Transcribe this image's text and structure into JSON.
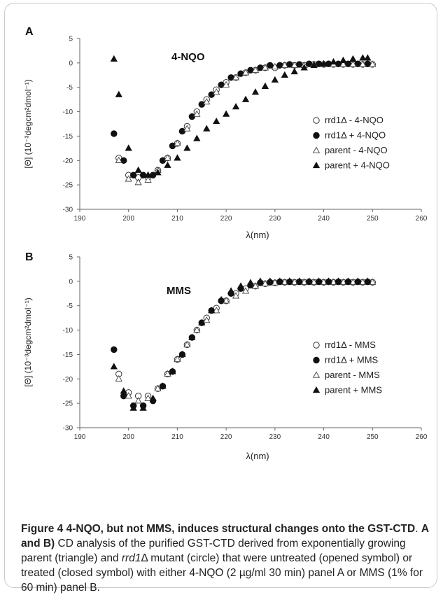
{
  "chart_data": [
    {
      "type": "scatter",
      "panel_label": "A",
      "title": "4-NQO",
      "xlabel": "λ(nm)",
      "ylabel": "[Θ] (10⁻³degcm²dmol⁻¹)",
      "xlim": [
        190,
        260
      ],
      "ylim": [
        -30,
        5
      ],
      "x_ticks": [
        "190",
        "200",
        "210",
        "220",
        "230",
        "240",
        "250",
        "260"
      ],
      "y_ticks": [
        "5",
        "0",
        "-5",
        "-10",
        "-15",
        "-20",
        "-25",
        "-30"
      ],
      "grid": false,
      "legend_position": "right",
      "series": [
        {
          "name": "rrd1Δ - 4-NQO",
          "marker": "circle-open",
          "x": [
            198,
            200,
            202,
            204,
            206,
            208,
            210,
            212,
            214,
            216,
            218,
            220,
            222,
            224,
            226,
            228,
            230,
            232,
            234,
            236,
            238,
            240,
            242,
            244,
            246,
            248,
            250
          ],
          "y": [
            -19.5,
            -23,
            -23.5,
            -23.5,
            -22,
            -19.5,
            -16.5,
            -13,
            -10,
            -7.5,
            -5.5,
            -4,
            -3,
            -2,
            -1.5,
            -1,
            -1,
            -0.5,
            -0.5,
            -0.5,
            -0.3,
            -0.3,
            -0.3,
            -0.3,
            -0.3,
            -0.3,
            -0.3
          ]
        },
        {
          "name": "rrd1Δ + 4-NQO",
          "marker": "circle-filled",
          "x": [
            197,
            199,
            201,
            203,
            205,
            207,
            209,
            211,
            213,
            215,
            217,
            219,
            221,
            223,
            225,
            227,
            229,
            231,
            233,
            235,
            237,
            239,
            241,
            243,
            245,
            247,
            249
          ],
          "y": [
            -14.5,
            -20,
            -23,
            -23,
            -23,
            -20,
            -17,
            -14,
            -11,
            -8.5,
            -6.5,
            -4.5,
            -3,
            -2.2,
            -1.5,
            -1,
            -0.5,
            -0.5,
            -0.3,
            -0.3,
            -0.2,
            -0.2,
            -0.2,
            -0.2,
            -0.2,
            -0.2,
            -0.2
          ]
        },
        {
          "name": "parent - 4-NQO",
          "marker": "triangle-open",
          "x": [
            198,
            200,
            202,
            204,
            206,
            208,
            210,
            212,
            214,
            216,
            218,
            220,
            222,
            224,
            226,
            228,
            230,
            232,
            234,
            236,
            238,
            240,
            242,
            244,
            246,
            248,
            250
          ],
          "y": [
            -20,
            -23.8,
            -24.5,
            -24,
            -22,
            -19.5,
            -16.5,
            -13.5,
            -10.5,
            -8,
            -6,
            -4.5,
            -3,
            -2,
            -1.5,
            -1,
            -0.8,
            -0.5,
            -0.5,
            -0.5,
            -0.3,
            -0.3,
            -0.3,
            -0.3,
            -0.3,
            -0.3,
            -0.3
          ]
        },
        {
          "name": "parent + 4-NQO",
          "marker": "triangle-filled",
          "x": [
            197,
            198,
            200,
            202,
            204,
            206,
            208,
            210,
            212,
            214,
            216,
            218,
            220,
            222,
            224,
            226,
            228,
            230,
            232,
            234,
            236,
            238,
            240,
            242,
            244,
            246,
            248,
            249
          ],
          "y": [
            0.8,
            -6.5,
            -17.5,
            -22,
            -23,
            -22.5,
            -21,
            -19.5,
            -17.5,
            -15.5,
            -13.5,
            -12,
            -10.5,
            -9,
            -7.5,
            -6,
            -4.8,
            -3.5,
            -2.5,
            -1.8,
            -1,
            -0.5,
            -0.2,
            0.2,
            0.5,
            0.8,
            1,
            1
          ]
        }
      ]
    },
    {
      "type": "scatter",
      "panel_label": "B",
      "title": "MMS",
      "xlabel": "λ(nm)",
      "ylabel": "[Θ] (10⁻³degcm²dmol⁻¹)",
      "xlim": [
        190,
        260
      ],
      "ylim": [
        -30,
        5
      ],
      "x_ticks": [
        "190",
        "200",
        "210",
        "220",
        "230",
        "240",
        "250",
        "260"
      ],
      "y_ticks": [
        "5",
        "0",
        "-5",
        "-10",
        "-15",
        "-20",
        "-25",
        "-30"
      ],
      "grid": false,
      "legend_position": "right",
      "series": [
        {
          "name": "rrd1Δ - MMS",
          "marker": "circle-open",
          "x": [
            198,
            200,
            202,
            204,
            206,
            208,
            210,
            212,
            214,
            216,
            218,
            220,
            222,
            224,
            226,
            228,
            230,
            232,
            234,
            236,
            238,
            240,
            242,
            244,
            246,
            248,
            250
          ],
          "y": [
            -19,
            -22.8,
            -23.5,
            -23.5,
            -22,
            -19,
            -16,
            -13,
            -10,
            -7.5,
            -5.5,
            -4,
            -2.5,
            -1.5,
            -1,
            -0.5,
            -0.3,
            -0.2,
            -0.2,
            -0.2,
            -0.2,
            -0.2,
            -0.2,
            -0.2,
            -0.2,
            -0.2,
            -0.2
          ]
        },
        {
          "name": "rrd1Δ + MMS",
          "marker": "circle-filled",
          "x": [
            197,
            199,
            201,
            203,
            205,
            207,
            209,
            211,
            213,
            215,
            217,
            219,
            221,
            223,
            225,
            227,
            229,
            231,
            233,
            235,
            237,
            239,
            241,
            243,
            245,
            247,
            249
          ],
          "y": [
            -14,
            -23.5,
            -25.5,
            -25.5,
            -24.5,
            -21.5,
            -18.5,
            -15,
            -11.5,
            -8.5,
            -6,
            -4,
            -2.5,
            -1.5,
            -0.8,
            -0.3,
            -0.2,
            -0.1,
            -0.1,
            -0.1,
            -0.1,
            -0.1,
            -0.1,
            -0.1,
            -0.1,
            -0.1,
            -0.1
          ]
        },
        {
          "name": "parent - MMS",
          "marker": "triangle-open",
          "x": [
            198,
            200,
            202,
            204,
            206,
            208,
            210,
            212,
            214,
            216,
            218,
            220,
            222,
            224,
            226,
            228,
            230,
            232,
            234,
            236,
            238,
            240,
            242,
            244,
            246,
            248,
            250
          ],
          "y": [
            -20,
            -23.5,
            -24.5,
            -24,
            -22,
            -19,
            -16,
            -13,
            -10,
            -8,
            -6,
            -4,
            -3,
            -2,
            -1,
            -0.5,
            -0.3,
            -0.2,
            -0.2,
            -0.2,
            -0.2,
            -0.2,
            -0.2,
            -0.2,
            -0.2,
            -0.2,
            -0.2
          ]
        },
        {
          "name": "parent + MMS",
          "marker": "triangle-filled",
          "x": [
            197,
            199,
            201,
            203,
            205,
            207,
            209,
            211,
            213,
            215,
            217,
            219,
            221,
            223,
            225,
            227,
            229,
            231,
            233,
            235,
            237,
            239,
            241,
            243,
            245,
            247,
            249
          ],
          "y": [
            -17.5,
            -22.5,
            -26,
            -26,
            -24,
            -21.5,
            -18.5,
            -15,
            -11.5,
            -8.5,
            -6,
            -3.8,
            -2,
            -1,
            -0.3,
            0,
            0,
            0,
            0,
            0,
            0,
            0,
            0,
            0,
            0,
            0,
            0
          ]
        }
      ]
    }
  ],
  "caption": {
    "bold_lead": "Figure 4 4-NQO, but not MMS, induces structural changes onto the GST-CTD",
    "bold_panels": "A and B)",
    "text_1": " CD analysis of the purified GST-CTD derived from exponentially growing parent (triangle) and ",
    "italic_gene": "rrd1",
    "text_2": "Δ mutant (circle) that were untreated (opened symbol) or treated (closed symbol) with either 4-NQO (2 µg/ml 30 min) panel A or MMS (1% for 60 min) panel B."
  }
}
